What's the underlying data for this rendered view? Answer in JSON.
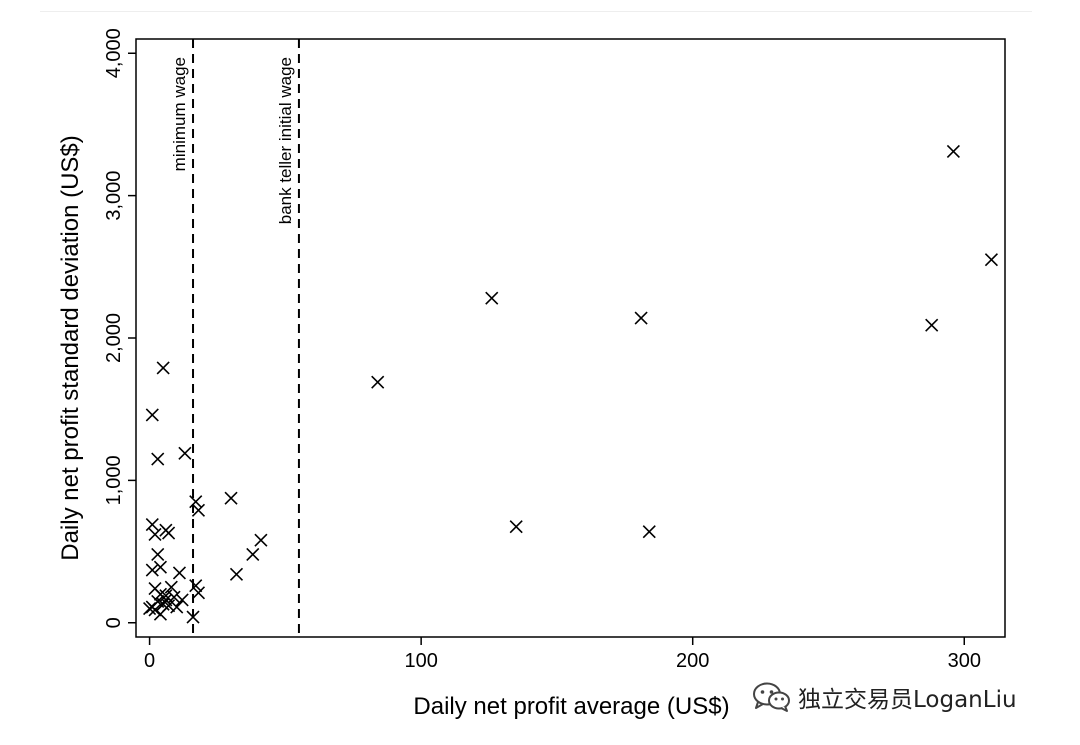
{
  "chart_data": {
    "type": "scatter",
    "xlabel": "Daily net profit average (US$)",
    "ylabel": "Daily net profit standard deviation (US$)",
    "xlim": [
      -5,
      315
    ],
    "ylim": [
      -100,
      4100
    ],
    "x_ticks": [
      0,
      100,
      200,
      300
    ],
    "x_tick_labels": [
      "0",
      "100",
      "200",
      "300"
    ],
    "y_ticks": [
      0,
      1000,
      2000,
      3000,
      4000
    ],
    "y_tick_labels": [
      "0",
      "1,000",
      "2,000",
      "3,000",
      "4,000"
    ],
    "grid": false,
    "marker": "x",
    "reference_lines": [
      {
        "x": 16,
        "label": "minimum wage",
        "style": "dashed"
      },
      {
        "x": 55,
        "label": "bank teller initial wage",
        "style": "dashed"
      }
    ],
    "points": [
      [
        296,
        3310
      ],
      [
        310,
        2550
      ],
      [
        288,
        2090
      ],
      [
        181,
        2140
      ],
      [
        126,
        2280
      ],
      [
        84,
        1690
      ],
      [
        135,
        675
      ],
      [
        184,
        640
      ],
      [
        5,
        1790
      ],
      [
        1,
        1460
      ],
      [
        3,
        1150
      ],
      [
        13,
        1190
      ],
      [
        30,
        875
      ],
      [
        17,
        850
      ],
      [
        18,
        790
      ],
      [
        41,
        580
      ],
      [
        38,
        480
      ],
      [
        32,
        340
      ],
      [
        1,
        690
      ],
      [
        2,
        620
      ],
      [
        6,
        650
      ],
      [
        7,
        630
      ],
      [
        3,
        480
      ],
      [
        4,
        390
      ],
      [
        1,
        370
      ],
      [
        11,
        350
      ],
      [
        8,
        250
      ],
      [
        17,
        260
      ],
      [
        18,
        210
      ],
      [
        2,
        240
      ],
      [
        4,
        200
      ],
      [
        6,
        190
      ],
      [
        9,
        180
      ],
      [
        12,
        160
      ],
      [
        3,
        150
      ],
      [
        5,
        130
      ],
      [
        7,
        120
      ],
      [
        10,
        110
      ],
      [
        0,
        100
      ],
      [
        2,
        90
      ],
      [
        4,
        60
      ],
      [
        16,
        40
      ],
      [
        1,
        110
      ],
      [
        6,
        160
      ]
    ]
  },
  "watermark": {
    "text": "独立交易员LoganLiu",
    "icon": "wechat-icon"
  }
}
